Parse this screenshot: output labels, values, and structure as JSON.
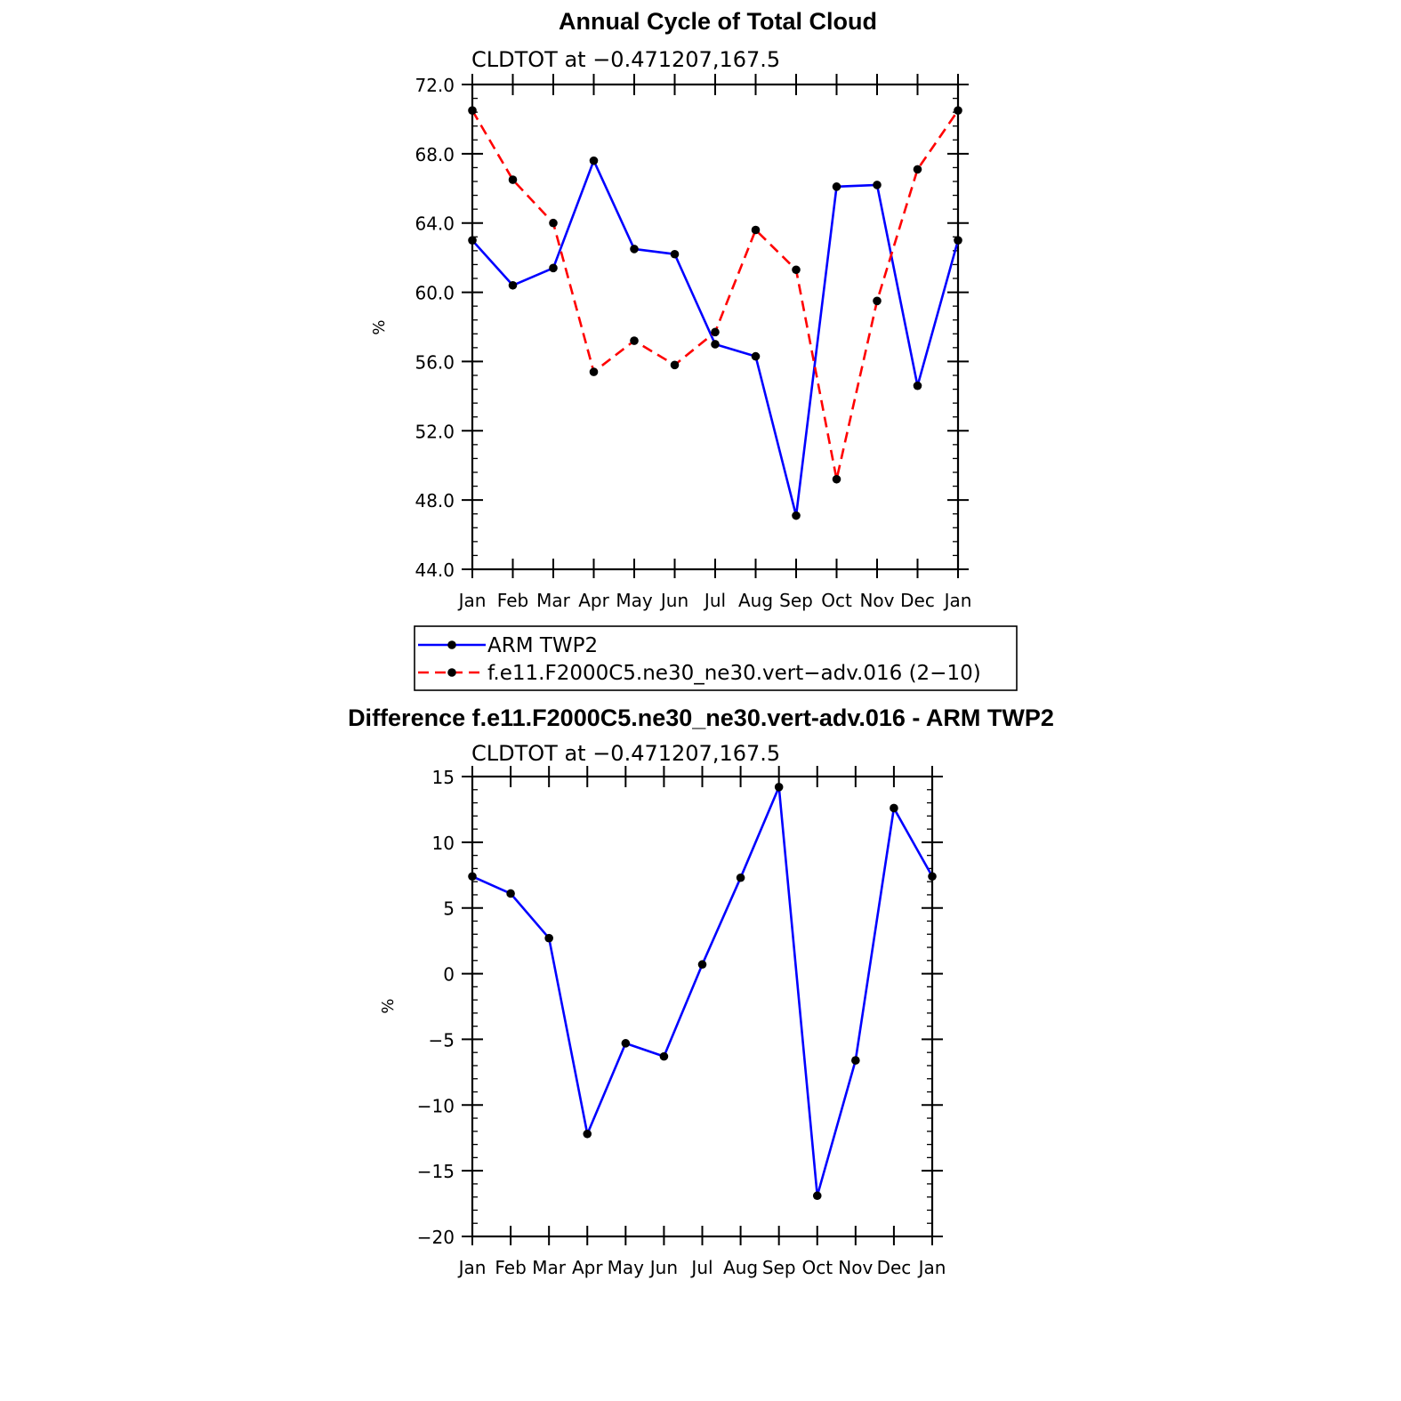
{
  "chart_data": [
    {
      "type": "line",
      "title": "Annual Cycle of Total Cloud",
      "subtitle": "CLDTOT at −0.471207,167.5",
      "ylabel": "%",
      "xlabel": "",
      "categories": [
        "Jan",
        "Feb",
        "Mar",
        "Apr",
        "May",
        "Jun",
        "Jul",
        "Aug",
        "Sep",
        "Oct",
        "Nov",
        "Dec",
        "Jan"
      ],
      "ylim": [
        44,
        72
      ],
      "yticks": [
        "44.0",
        "48.0",
        "52.0",
        "56.0",
        "60.0",
        "64.0",
        "68.0",
        "72.0"
      ],
      "grid": false,
      "legend_placement": "below",
      "series": [
        {
          "name": "ARM TWP2",
          "color": "#0000ff",
          "dash": "solid",
          "values": [
            63.0,
            60.4,
            61.4,
            67.6,
            62.5,
            62.2,
            57.0,
            56.3,
            47.1,
            66.1,
            66.2,
            54.6,
            63.0
          ]
        },
        {
          "name": "f.e11.F2000C5.ne30_ne30.vert−adv.016 (2−10)",
          "color": "#ff0000",
          "dash": "dashed",
          "values": [
            70.5,
            66.5,
            64.0,
            55.4,
            57.2,
            55.8,
            57.7,
            63.6,
            61.3,
            49.2,
            59.5,
            67.1,
            70.5
          ]
        }
      ]
    },
    {
      "type": "line",
      "title": "Difference f.e11.F2000C5.ne30_ne30.vert-adv.016 - ARM TWP2",
      "subtitle": "CLDTOT at −0.471207,167.5",
      "ylabel": "%",
      "xlabel": "",
      "categories": [
        "Jan",
        "Feb",
        "Mar",
        "Apr",
        "May",
        "Jun",
        "Jul",
        "Aug",
        "Sep",
        "Oct",
        "Nov",
        "Dec",
        "Jan"
      ],
      "ylim": [
        -20,
        15
      ],
      "yticks": [
        "−20",
        "−15",
        "−10",
        "−5",
        "0",
        "5",
        "10",
        "15"
      ],
      "grid": false,
      "series": [
        {
          "color": "#0000ff",
          "dash": "solid",
          "values": [
            7.4,
            6.1,
            2.7,
            -12.2,
            -5.3,
            -6.3,
            0.7,
            7.3,
            14.2,
            -16.9,
            -6.6,
            12.6,
            7.4
          ]
        }
      ]
    }
  ]
}
